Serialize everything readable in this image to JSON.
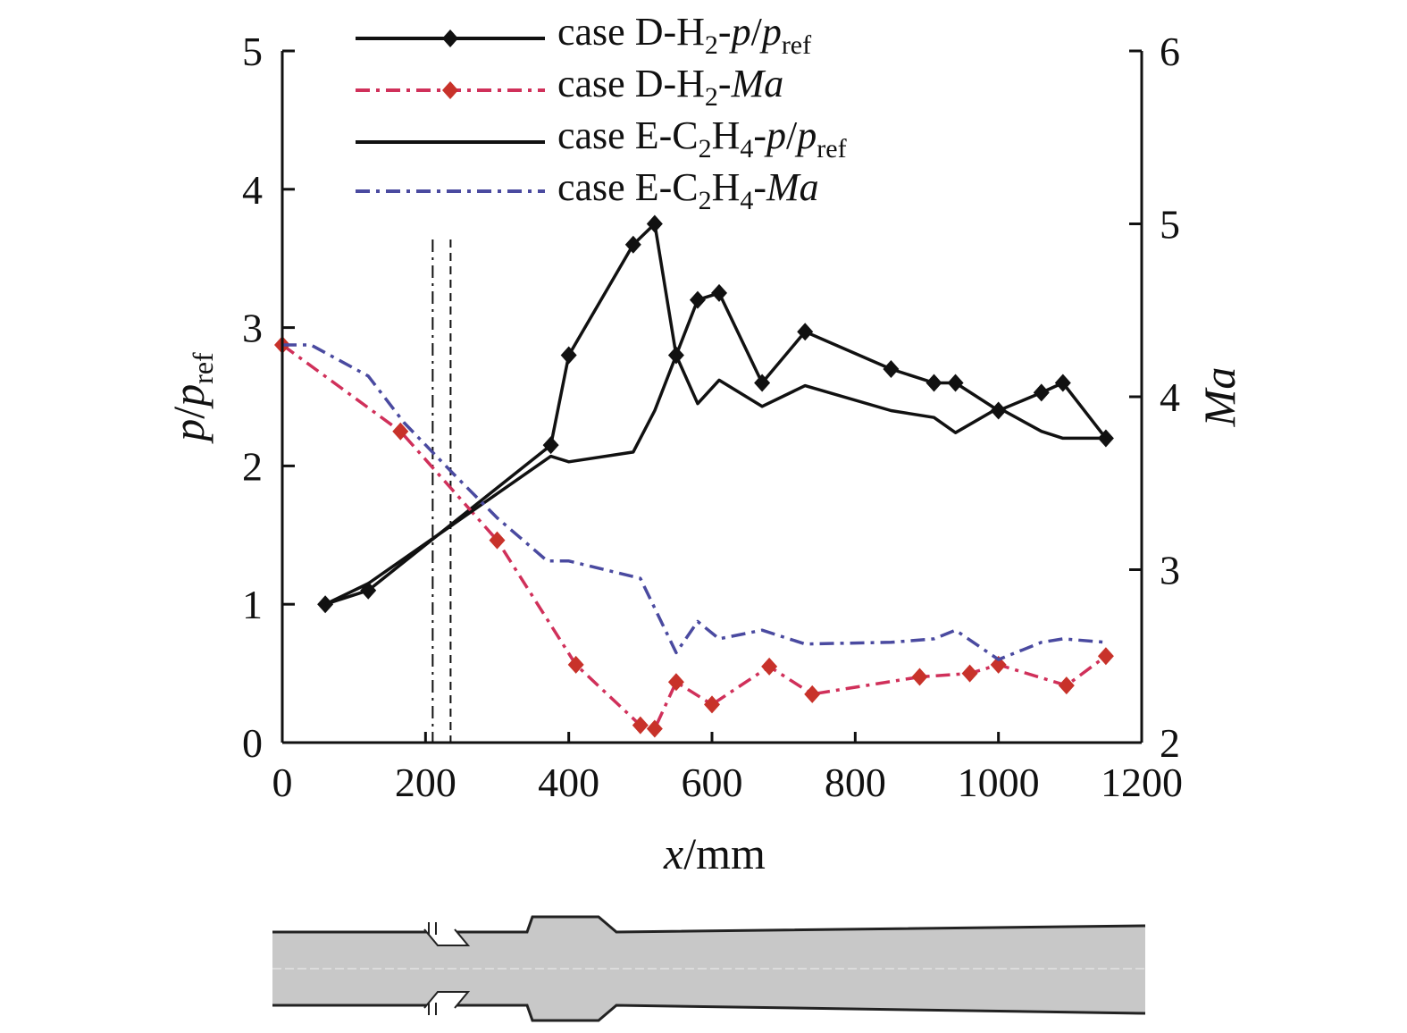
{
  "chart_data": {
    "type": "line",
    "xlabel": {
      "var": "x",
      "unit": "/mm"
    },
    "ylabel_left": {
      "var1": "p",
      "slash": "/",
      "var2": "p",
      "sub": "ref"
    },
    "ylabel_right": {
      "var": "Ma"
    },
    "xlim": [
      0,
      1200
    ],
    "ylim_left": [
      0,
      5
    ],
    "ylim_right": [
      2,
      6
    ],
    "x_ticks": [
      0,
      200,
      400,
      600,
      800,
      1000,
      1200
    ],
    "x_tick_labels": [
      "0",
      "200",
      "400",
      "600",
      "800",
      "1000",
      "1200"
    ],
    "y_left_ticks": [
      0,
      1,
      2,
      3,
      4,
      5
    ],
    "y_left_tick_labels": [
      "0",
      "1",
      "2",
      "3",
      "4",
      "5"
    ],
    "y_right_ticks": [
      2,
      3,
      4,
      5,
      6
    ],
    "y_right_tick_labels": [
      "2",
      "3",
      "4",
      "5",
      "6"
    ],
    "grid": false,
    "legend_position": "top",
    "vertical_reference_lines": [
      {
        "x": 210,
        "style": "dash-dot"
      },
      {
        "x": 235,
        "style": "dashed"
      }
    ],
    "series": [
      {
        "name": "case D-H2-p/pref",
        "legend": {
          "pre": "case D-H",
          "sub1": "2",
          "mid": "-",
          "it1": "p",
          "slash": "/",
          "it2": "p",
          "sub2": "ref"
        },
        "axis": "left",
        "color": "#111111",
        "dash": "",
        "marker": "diamond",
        "marker_color": "#111111",
        "points": [
          [
            60,
            1.0
          ],
          [
            120,
            1.1
          ],
          [
            375,
            2.15
          ],
          [
            400,
            2.8
          ],
          [
            490,
            3.6
          ],
          [
            520,
            3.75
          ],
          [
            550,
            2.8
          ],
          [
            580,
            3.2
          ],
          [
            610,
            3.25
          ],
          [
            670,
            2.6
          ],
          [
            730,
            2.97
          ],
          [
            850,
            2.7
          ],
          [
            910,
            2.6
          ],
          [
            940,
            2.6
          ],
          [
            1000,
            2.4
          ],
          [
            1060,
            2.53
          ],
          [
            1090,
            2.6
          ],
          [
            1150,
            2.2
          ]
        ]
      },
      {
        "name": "case D-H2-Ma",
        "legend": {
          "pre": "case D-H",
          "sub1": "2",
          "mid": "-",
          "it1": "Ma"
        },
        "axis": "right",
        "color": "#d0305a",
        "dash": "16 7 4 7",
        "marker": "diamond",
        "marker_color": "#c8322a",
        "points": [
          [
            0,
            4.3
          ],
          [
            165,
            3.8
          ],
          [
            300,
            3.17
          ],
          [
            410,
            2.45
          ],
          [
            500,
            2.1
          ],
          [
            520,
            2.08
          ],
          [
            550,
            2.35
          ],
          [
            600,
            2.22
          ],
          [
            680,
            2.44
          ],
          [
            740,
            2.28
          ],
          [
            890,
            2.38
          ],
          [
            960,
            2.4
          ],
          [
            1000,
            2.45
          ],
          [
            1095,
            2.33
          ],
          [
            1150,
            2.5
          ]
        ]
      },
      {
        "name": "case E-C2H4-p/pref",
        "legend": {
          "pre": "case E-C",
          "sub1": "2",
          "mid": "H",
          "sub2": "4",
          "post": "-",
          "it1": "p",
          "slash": "/",
          "it2": "p",
          "sub3": "ref"
        },
        "axis": "left",
        "color": "#111111",
        "dash": "",
        "marker": "none",
        "points": [
          [
            60,
            1.0
          ],
          [
            120,
            1.15
          ],
          [
            375,
            2.07
          ],
          [
            400,
            2.03
          ],
          [
            490,
            2.1
          ],
          [
            520,
            2.4
          ],
          [
            550,
            2.8
          ],
          [
            580,
            2.45
          ],
          [
            610,
            2.62
          ],
          [
            670,
            2.43
          ],
          [
            730,
            2.58
          ],
          [
            850,
            2.4
          ],
          [
            910,
            2.35
          ],
          [
            940,
            2.24
          ],
          [
            1000,
            2.42
          ],
          [
            1060,
            2.25
          ],
          [
            1090,
            2.2
          ],
          [
            1150,
            2.2
          ]
        ]
      },
      {
        "name": "case E-C2H4-Ma",
        "legend": {
          "pre": "case E-C",
          "sub1": "2",
          "mid": "H",
          "sub2": "4",
          "post": "-",
          "it1": "Ma"
        },
        "axis": "right",
        "color": "#4a4aa0",
        "dash": "16 7 4 7",
        "marker": "none",
        "points": [
          [
            0,
            4.3
          ],
          [
            40,
            4.3
          ],
          [
            120,
            4.12
          ],
          [
            170,
            3.85
          ],
          [
            240,
            3.55
          ],
          [
            300,
            3.3
          ],
          [
            370,
            3.05
          ],
          [
            400,
            3.05
          ],
          [
            450,
            3.0
          ],
          [
            500,
            2.95
          ],
          [
            550,
            2.52
          ],
          [
            580,
            2.7
          ],
          [
            610,
            2.6
          ],
          [
            670,
            2.65
          ],
          [
            730,
            2.57
          ],
          [
            850,
            2.58
          ],
          [
            910,
            2.6
          ],
          [
            940,
            2.65
          ],
          [
            1000,
            2.48
          ],
          [
            1060,
            2.58
          ],
          [
            1090,
            2.6
          ],
          [
            1150,
            2.58
          ]
        ]
      }
    ]
  },
  "schematic": {
    "duct_color": "#c8c8c8",
    "outline_color": "#222222",
    "centerline_color": "#dcdcdc"
  }
}
